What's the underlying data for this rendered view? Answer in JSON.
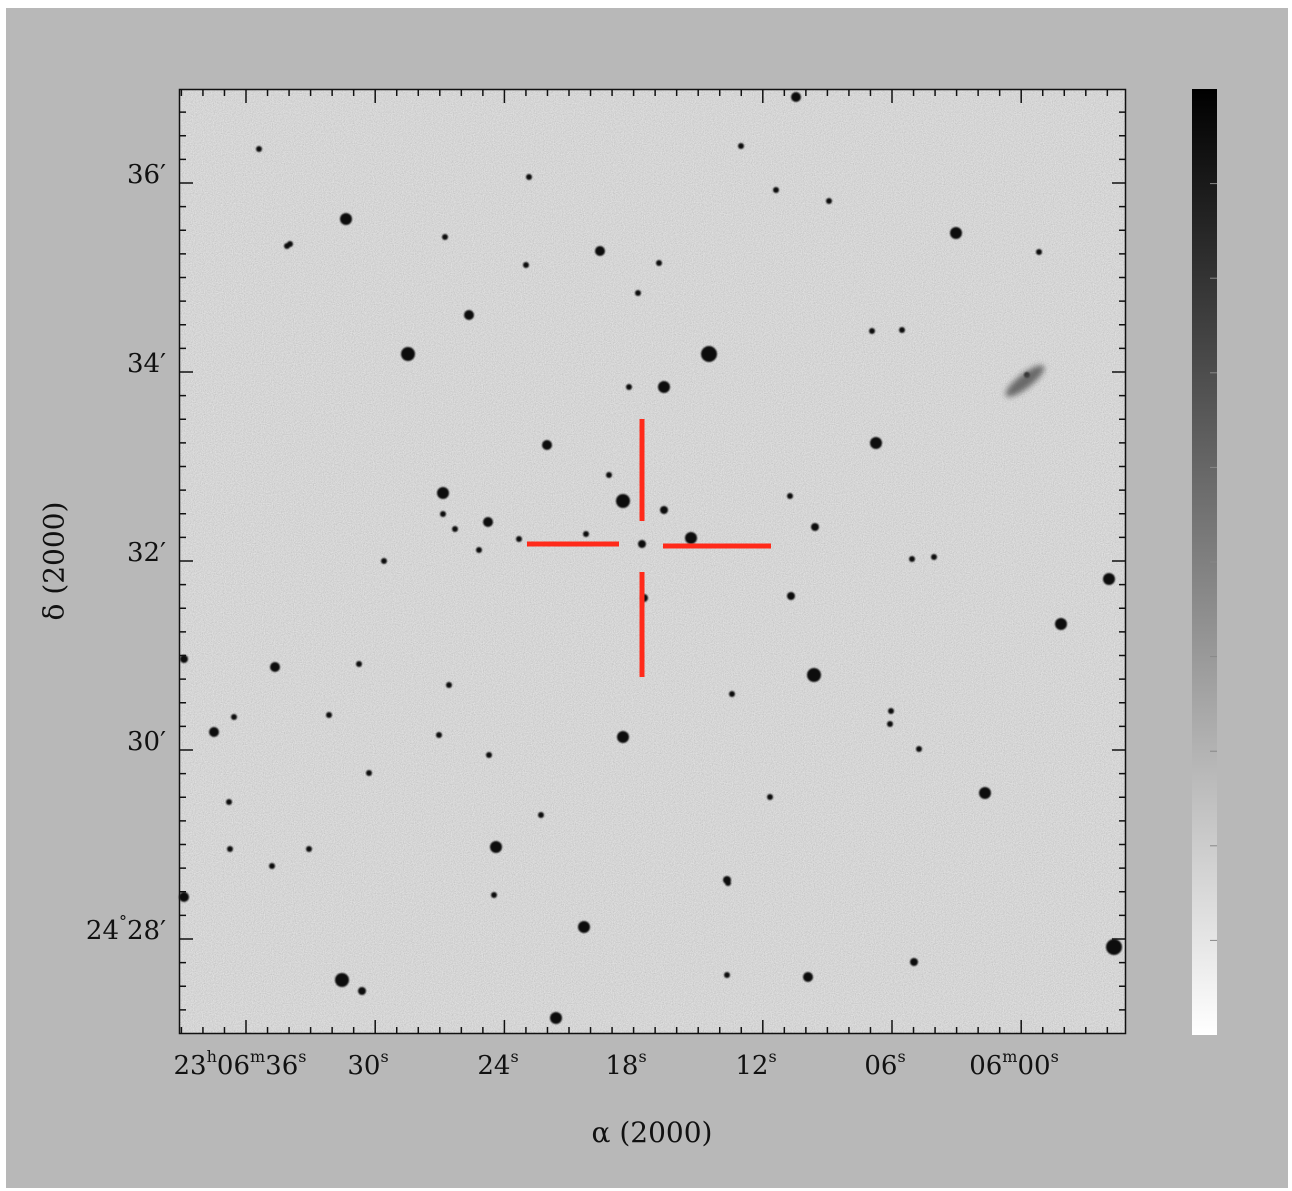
{
  "axes": {
    "x_title": "α (2000)",
    "y_title": "δ (2000)",
    "ra_ticks": [
      {
        "h": "23",
        "m": "06",
        "s": "36"
      },
      {
        "s": "30"
      },
      {
        "s": "24"
      },
      {
        "s": "18"
      },
      {
        "s": "12"
      },
      {
        "s": "06"
      },
      {
        "m": "06",
        "s": "00"
      }
    ],
    "dec_ticks": [
      {
        "text": "36′"
      },
      {
        "text": "34′"
      },
      {
        "text": "32′"
      },
      {
        "text": "30′"
      },
      {
        "deg": "24",
        "text": "28′"
      }
    ]
  },
  "marker": {
    "type": "crosshair",
    "color": "#ff2a1a"
  },
  "colorbar": {
    "orientation": "vertical",
    "top_color": "#000000",
    "bottom_color": "#ffffff"
  },
  "image": {
    "description_colors": {
      "background": "#c0c0c0",
      "star": "#101010"
    }
  }
}
